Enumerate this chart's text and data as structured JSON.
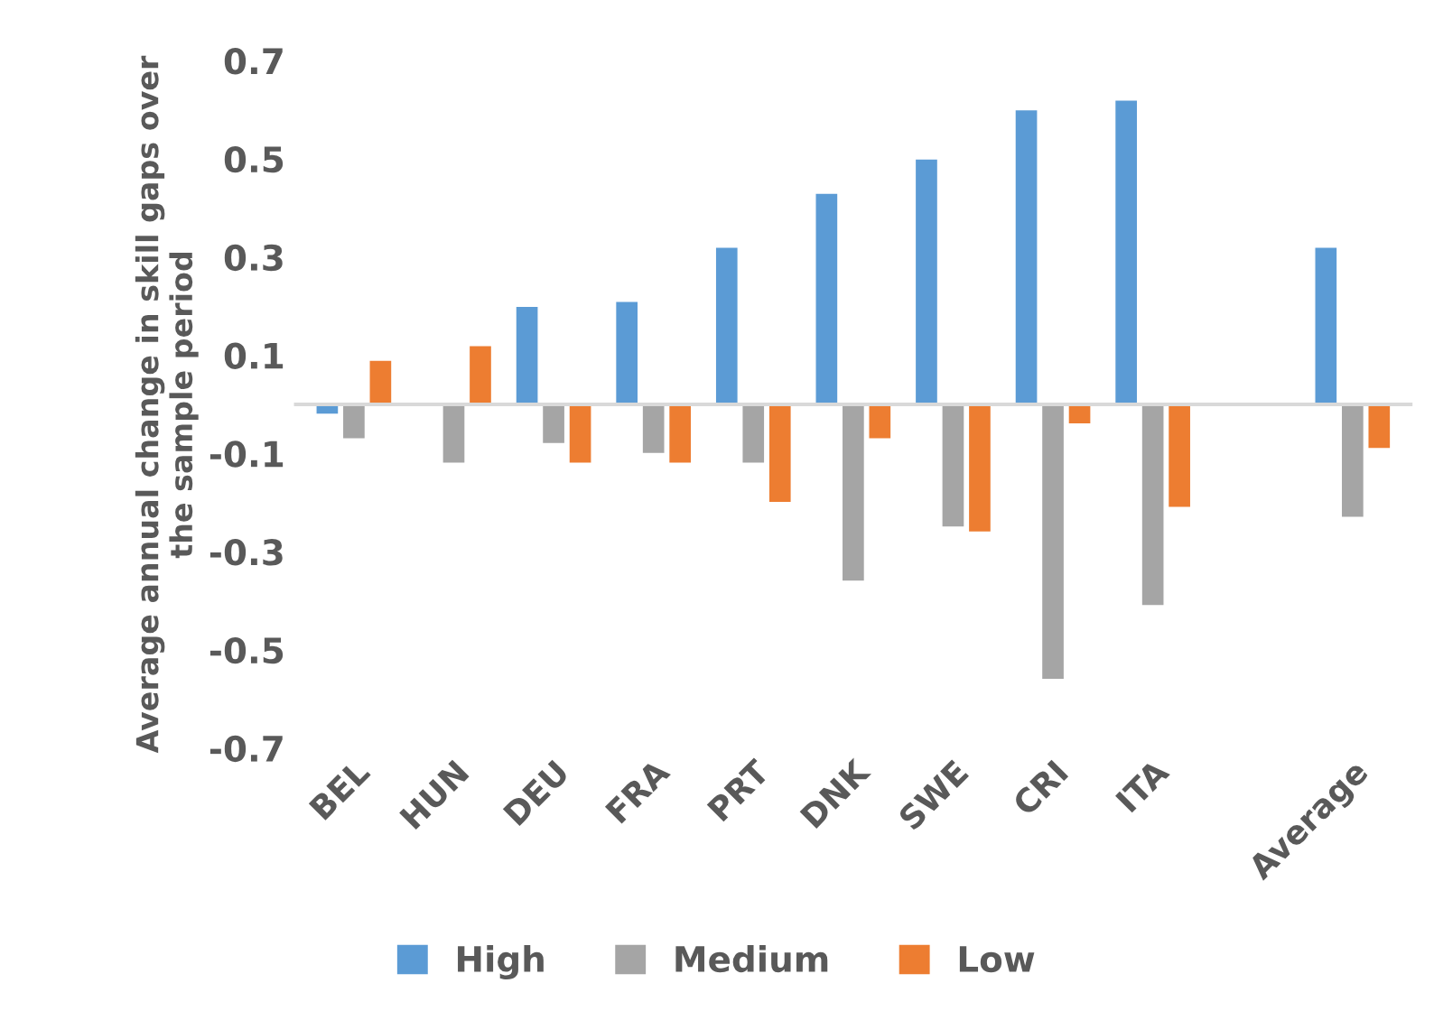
{
  "chart_data": {
    "type": "bar",
    "ylabel": "Average annual change in skill gaps over\nthe sample period",
    "categories": [
      "BEL",
      "HUN",
      "DEU",
      "FRA",
      "PRT",
      "DNK",
      "SWE",
      "CRI",
      "ITA",
      null,
      "Average"
    ],
    "series": [
      {
        "name": "High",
        "color": "#5b9bd5",
        "values": [
          -0.02,
          null,
          0.2,
          0.21,
          0.32,
          0.43,
          0.5,
          0.6,
          0.62,
          null,
          0.32
        ]
      },
      {
        "name": "Medium",
        "color": "#a5a5a5",
        "values": [
          -0.07,
          -0.12,
          -0.08,
          -0.1,
          -0.12,
          -0.36,
          -0.25,
          -0.56,
          -0.41,
          null,
          -0.23
        ]
      },
      {
        "name": "Low",
        "color": "#ed7d31",
        "values": [
          0.09,
          0.12,
          -0.12,
          -0.12,
          -0.2,
          -0.07,
          -0.26,
          -0.04,
          -0.21,
          null,
          -0.09
        ]
      }
    ],
    "ylim": [
      -0.7,
      0.7
    ],
    "yticks": [
      -0.7,
      -0.5,
      -0.3,
      -0.1,
      0.1,
      0.3,
      0.5,
      0.7
    ],
    "grid": false,
    "legend": "bottom"
  }
}
